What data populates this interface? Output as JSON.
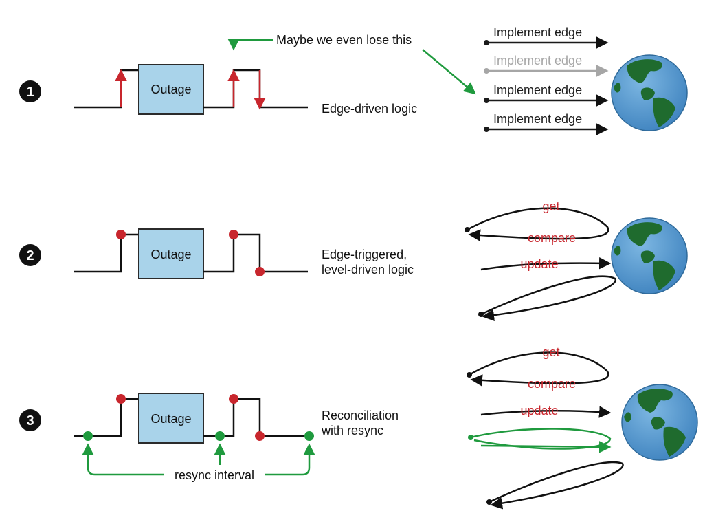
{
  "rows": [
    {
      "number": "1",
      "outage_label": "Outage",
      "description_lines": [
        "Edge-driven logic"
      ]
    },
    {
      "number": "2",
      "outage_label": "Outage",
      "description_lines": [
        "Edge-triggered,",
        "level-driven logic"
      ]
    },
    {
      "number": "3",
      "outage_label": "Outage",
      "description_lines": [
        "Reconciliation",
        "with resync"
      ]
    }
  ],
  "callouts": {
    "lose_note": "Maybe we even lose this",
    "resync_interval": "resync interval"
  },
  "edge_events": {
    "label": "Implement edge",
    "lost_index": 1,
    "count": 4
  },
  "loop_labels": {
    "get": "get",
    "compare": "compare",
    "update": "update"
  },
  "colors": {
    "signal": "#1a1a1a",
    "edge_red": "#c8262d",
    "resync_green": "#1f9a3e",
    "outage_fill": "#a9d3ea",
    "outage_stroke": "#2b2b2b",
    "lost_gray": "#a6a6a6",
    "ocean": "#4a90c8",
    "land": "#1f6b2e",
    "badge": "#111111"
  },
  "icons": [
    "globe-icon",
    "circled-number-icon",
    "arrow-icon"
  ]
}
